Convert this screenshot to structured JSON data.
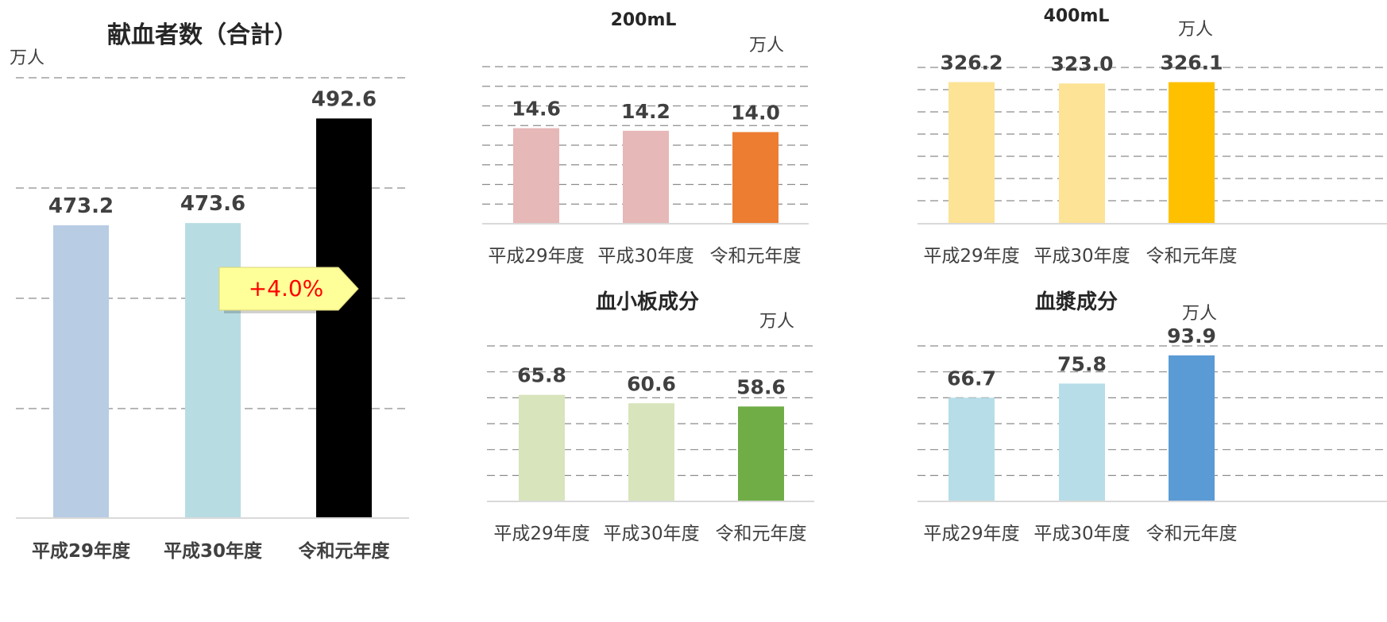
{
  "charts": [
    {
      "id": "total",
      "chart_data": {
        "type": "bar",
        "title": "献血者数（合計）",
        "unit": "万人",
        "categories": [
          "平成29年度",
          "平成30年度",
          "令和元年度"
        ],
        "values": [
          473.2,
          473.6,
          492.6
        ],
        "labels": [
          "473.2",
          "473.6",
          "492.6"
        ],
        "colors": [
          "#B8CCE4",
          "#B7DDE3",
          "#000000"
        ],
        "ylim": [
          420,
          500
        ],
        "grid": true,
        "annotation": "+4.0%"
      }
    },
    {
      "id": "ml200",
      "chart_data": {
        "type": "bar",
        "title": "200mL",
        "unit": "万人",
        "categories": [
          "平成29年度",
          "平成30年度",
          "令和元年度"
        ],
        "values": [
          14.6,
          14.2,
          14.0
        ],
        "labels": [
          "14.6",
          "14.2",
          "14.0"
        ],
        "colors": [
          "#E6B8B7",
          "#E6B8B7",
          "#ED7D31"
        ],
        "ylim": [
          0,
          24
        ],
        "grid": true
      }
    },
    {
      "id": "ml400",
      "chart_data": {
        "type": "bar",
        "title": "400mL",
        "unit": "万人",
        "categories": [
          "平成29年度",
          "平成30年度",
          "令和元年度"
        ],
        "values": [
          326.2,
          323.0,
          326.1
        ],
        "labels": [
          "326.2",
          "323.0",
          "326.1"
        ],
        "colors": [
          "#FCE395",
          "#FCE395",
          "#FFC000"
        ],
        "ylim": [
          0,
          360
        ],
        "grid": true
      }
    },
    {
      "id": "platelet",
      "chart_data": {
        "type": "bar",
        "title": "血小板成分",
        "unit": "万人",
        "categories": [
          "平成29年度",
          "平成30年度",
          "令和元年度"
        ],
        "values": [
          65.8,
          60.6,
          58.6
        ],
        "labels": [
          "65.8",
          "60.6",
          "58.6"
        ],
        "colors": [
          "#D8E4BC",
          "#D8E4BC",
          "#70AD47"
        ],
        "ylim": [
          0,
          96
        ],
        "grid": true
      }
    },
    {
      "id": "plasma",
      "chart_data": {
        "type": "bar",
        "title": "血漿成分",
        "unit": "万人",
        "categories": [
          "平成29年度",
          "平成30年度",
          "令和元年度"
        ],
        "values": [
          66.7,
          75.8,
          93.9
        ],
        "labels": [
          "66.7",
          "75.8",
          "93.9"
        ],
        "colors": [
          "#B7DDE8",
          "#B7DDE8",
          "#5B9BD5"
        ],
        "ylim": [
          0,
          100
        ],
        "grid": true
      }
    }
  ]
}
